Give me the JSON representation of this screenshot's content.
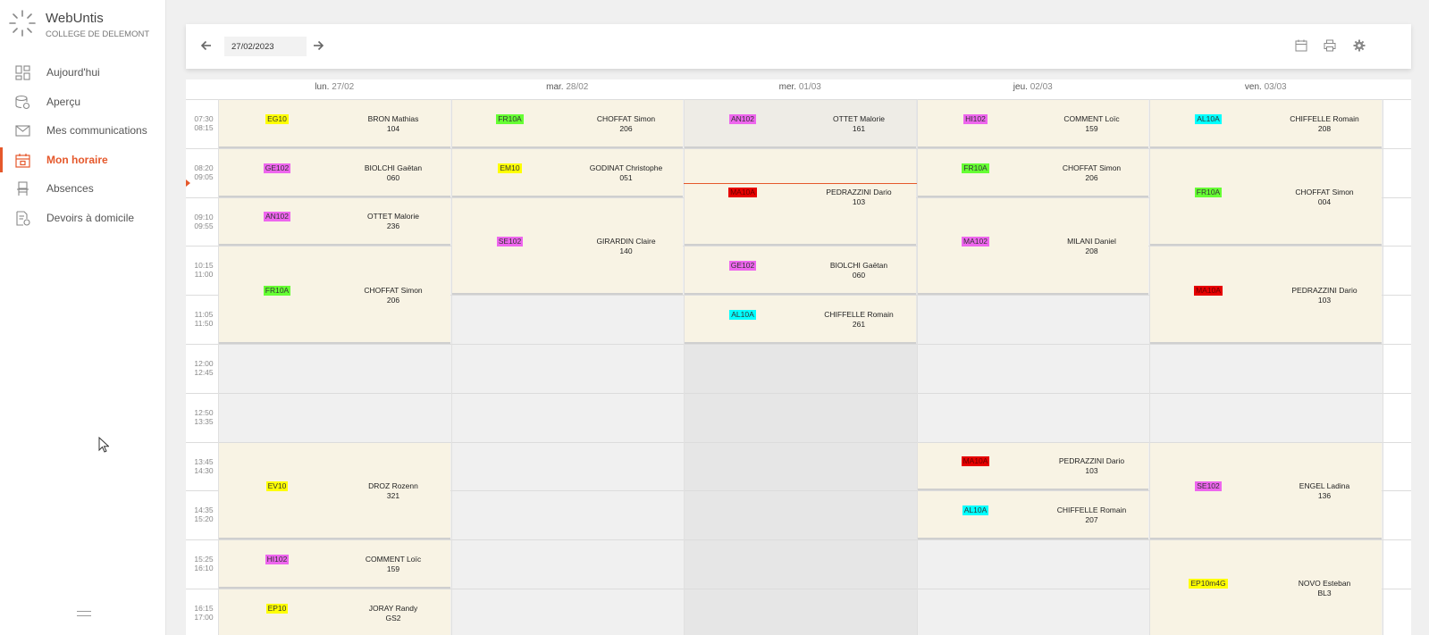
{
  "app": {
    "name": "WebUntis",
    "school": "COLLEGE DE DELEMONT"
  },
  "nav": [
    {
      "label": "Aujourd'hui",
      "icon": "dashboard-icon",
      "active": false
    },
    {
      "label": "Aperçu",
      "icon": "overview-icon",
      "active": false
    },
    {
      "label": "Mes communications",
      "icon": "mail-icon",
      "active": false
    },
    {
      "label": "Mon horaire",
      "icon": "calendar-icon",
      "active": true
    },
    {
      "label": "Absences",
      "icon": "chair-icon",
      "active": false
    },
    {
      "label": "Devoirs à domicile",
      "icon": "homework-icon",
      "active": false
    }
  ],
  "toolbar": {
    "date": "27/02/2023",
    "icons": [
      "arrow-left-icon",
      "arrow-right-icon",
      "calendar-icon",
      "print-icon",
      "settings-icon"
    ]
  },
  "colors": {
    "accent": "#e5582b",
    "lesson": "#f8f3e4",
    "yellow": "#ffff00",
    "green": "#66ff33",
    "magenta": "#ee66ee",
    "cyan": "#00ffff",
    "red": "#e60000"
  },
  "days": [
    {
      "name": "lun.",
      "date": "27/02"
    },
    {
      "name": "mar.",
      "date": "28/02"
    },
    {
      "name": "mer.",
      "date": "01/03"
    },
    {
      "name": "jeu.",
      "date": "02/03"
    },
    {
      "name": "ven.",
      "date": "03/03"
    }
  ],
  "periods": [
    {
      "start": "07:30",
      "end": "08:15"
    },
    {
      "start": "08:20",
      "end": "09:05"
    },
    {
      "start": "09:10",
      "end": "09:55"
    },
    {
      "start": "10:15",
      "end": "11:00"
    },
    {
      "start": "11:05",
      "end": "11:50"
    },
    {
      "start": "12:00",
      "end": "12:45"
    },
    {
      "start": "12:50",
      "end": "13:35"
    },
    {
      "start": "13:45",
      "end": "14:30"
    },
    {
      "start": "14:35",
      "end": "15:20"
    },
    {
      "start": "15:25",
      "end": "16:10"
    },
    {
      "start": "16:15",
      "end": "17:00"
    }
  ],
  "lessons": [
    {
      "day": 0,
      "start": 0,
      "span": 1,
      "subject": "EG10",
      "color": "yellow",
      "teacher": "BRON Mathias",
      "room": "104"
    },
    {
      "day": 0,
      "start": 1,
      "span": 1,
      "subject": "GE102",
      "color": "magenta",
      "teacher": "BIOLCHI Gaëtan",
      "room": "060"
    },
    {
      "day": 0,
      "start": 2,
      "span": 1,
      "subject": "AN102",
      "color": "magenta",
      "teacher": "OTTET Malorie",
      "room": "236"
    },
    {
      "day": 0,
      "start": 3,
      "span": 2,
      "subject": "FR10A",
      "color": "green",
      "teacher": "CHOFFAT Simon",
      "room": "206"
    },
    {
      "day": 0,
      "start": 7,
      "span": 2,
      "subject": "EV10",
      "color": "yellow",
      "teacher": "DROZ Rozenn",
      "room": "321"
    },
    {
      "day": 0,
      "start": 9,
      "span": 1,
      "subject": "HI102",
      "color": "magenta",
      "teacher": "COMMENT Loïc",
      "room": "159"
    },
    {
      "day": 0,
      "start": 10,
      "span": 1,
      "subject": "EP10",
      "color": "yellow",
      "teacher": "JORAY Randy",
      "room": "GS2"
    },
    {
      "day": 1,
      "start": 0,
      "span": 1,
      "subject": "FR10A",
      "color": "green",
      "teacher": "CHOFFAT Simon",
      "room": "206"
    },
    {
      "day": 1,
      "start": 1,
      "span": 1,
      "subject": "EM10",
      "color": "yellow",
      "teacher": "GODINAT Christophe",
      "room": "051"
    },
    {
      "day": 1,
      "start": 2,
      "span": 2,
      "subject": "SE102",
      "color": "magenta",
      "teacher": "GIRARDIN Claire",
      "room": "140"
    },
    {
      "day": 2,
      "start": 0,
      "span": 1,
      "subject": "AN102",
      "color": "magenta",
      "teacher": "OTTET Malorie",
      "room": "161",
      "gray": true
    },
    {
      "day": 2,
      "start": 1,
      "span": 2,
      "subject": "MA10A",
      "color": "red",
      "teacher": "PEDRAZZINI Dario",
      "room": "103"
    },
    {
      "day": 2,
      "start": 3,
      "span": 1,
      "subject": "GE102",
      "color": "magenta",
      "teacher": "BIOLCHI Gaëtan",
      "room": "060"
    },
    {
      "day": 2,
      "start": 4,
      "span": 1,
      "subject": "AL10A",
      "color": "cyan",
      "teacher": "CHIFFELLE Romain",
      "room": "261"
    },
    {
      "day": 3,
      "start": 0,
      "span": 1,
      "subject": "HI102",
      "color": "magenta",
      "teacher": "COMMENT Loïc",
      "room": "159"
    },
    {
      "day": 3,
      "start": 1,
      "span": 1,
      "subject": "FR10A",
      "color": "green",
      "teacher": "CHOFFAT Simon",
      "room": "206"
    },
    {
      "day": 3,
      "start": 2,
      "span": 2,
      "subject": "MA102",
      "color": "magenta",
      "teacher": "MILANI Daniel",
      "room": "208"
    },
    {
      "day": 3,
      "start": 7,
      "span": 1,
      "subject": "MA10A",
      "color": "red",
      "teacher": "PEDRAZZINI Dario",
      "room": "103"
    },
    {
      "day": 3,
      "start": 8,
      "span": 1,
      "subject": "AL10A",
      "color": "cyan",
      "teacher": "CHIFFELLE Romain",
      "room": "207"
    },
    {
      "day": 4,
      "start": 0,
      "span": 1,
      "subject": "AL10A",
      "color": "cyan",
      "teacher": "CHIFFELLE Romain",
      "room": "208"
    },
    {
      "day": 4,
      "start": 1,
      "span": 2,
      "subject": "FR10A",
      "color": "green",
      "teacher": "CHOFFAT Simon",
      "room": "004"
    },
    {
      "day": 4,
      "start": 3,
      "span": 2,
      "subject": "MA10A",
      "color": "red",
      "teacher": "PEDRAZZINI Dario",
      "room": "103"
    },
    {
      "day": 4,
      "start": 7,
      "span": 2,
      "subject": "SE102",
      "color": "magenta",
      "teacher": "ENGEL Ladina",
      "room": "136"
    },
    {
      "day": 4,
      "start": 9,
      "span": 2,
      "subject": "EP10m4G",
      "color": "yellow",
      "teacher": "NOVO Esteban",
      "room": "BL3"
    }
  ],
  "now": {
    "day": 2,
    "period": 1,
    "fraction": 0.72
  }
}
